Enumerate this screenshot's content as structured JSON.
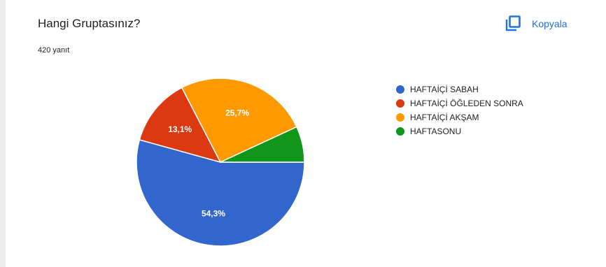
{
  "header": {
    "title": "Hangi Gruptasınız?",
    "response_count": "420 yanıt",
    "copy_label": "Kopyala",
    "copy_icon": "copy-icon"
  },
  "colors": {
    "accent": "#1a73e8"
  },
  "chart_data": {
    "type": "pie",
    "categories": [
      "HAFTAİÇİ SABAH",
      "HAFTAİÇİ ÖĞLEDEN SONRA",
      "HAFTAİÇİ AKŞAM",
      "HAFTASONU"
    ],
    "values": [
      54.3,
      13.1,
      25.7,
      6.9
    ],
    "labels": [
      "54,3%",
      "13,1%",
      "25,7%",
      ""
    ],
    "colors": [
      "#3366cc",
      "#dc3912",
      "#ff9900",
      "#109618"
    ],
    "legend_position": "right"
  }
}
